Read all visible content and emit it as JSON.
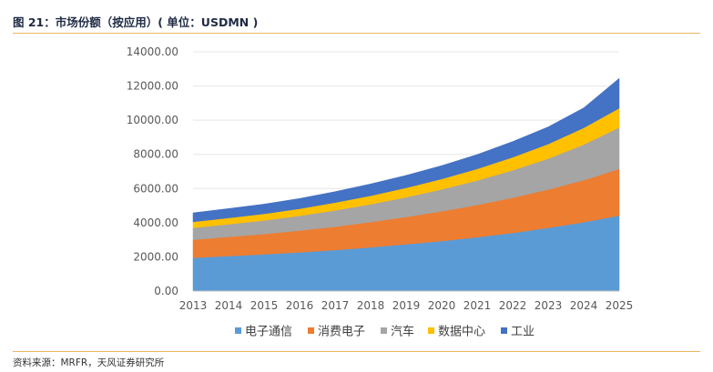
{
  "title": "图 21：市场份额（按应用）( 单位：USDMN )",
  "source": "资料来源：MRFR，天风证券研究所",
  "chart_data": {
    "type": "area",
    "stacked": true,
    "x": [
      "2013",
      "2014",
      "2015",
      "2016",
      "2017",
      "2018",
      "2019",
      "2020",
      "2021",
      "2022",
      "2023",
      "2024",
      "2025"
    ],
    "ylim": [
      0,
      14000
    ],
    "yticks": [
      0,
      2000,
      4000,
      6000,
      8000,
      10000,
      12000,
      14000
    ],
    "ytick_labels": [
      "0.00",
      "2000.00",
      "4000.00",
      "6000.00",
      "8000.00",
      "10000.00",
      "12000.00",
      "14000.00"
    ],
    "legend_position": "bottom",
    "series": [
      {
        "name": "电子通信",
        "color": "#5b9bd5",
        "values": [
          1950,
          2050,
          2150,
          2270,
          2400,
          2560,
          2740,
          2930,
          3150,
          3400,
          3700,
          4030,
          4420
        ]
      },
      {
        "name": "消费电子",
        "color": "#ed7d31",
        "values": [
          1050,
          1120,
          1190,
          1270,
          1370,
          1480,
          1600,
          1740,
          1890,
          2060,
          2240,
          2460,
          2730
        ]
      },
      {
        "name": "汽车",
        "color": "#a5a5a5",
        "values": [
          700,
          740,
          790,
          860,
          950,
          1040,
          1150,
          1280,
          1430,
          1610,
          1810,
          2080,
          2420
        ]
      },
      {
        "name": "数据中心",
        "color": "#ffc000",
        "values": [
          350,
          370,
          390,
          420,
          460,
          500,
          550,
          610,
          680,
          760,
          850,
          980,
          1130
        ]
      },
      {
        "name": "工业",
        "color": "#4472c4",
        "values": [
          530,
          550,
          570,
          600,
          640,
          690,
          730,
          780,
          840,
          920,
          1010,
          1170,
          1750
        ]
      }
    ]
  }
}
